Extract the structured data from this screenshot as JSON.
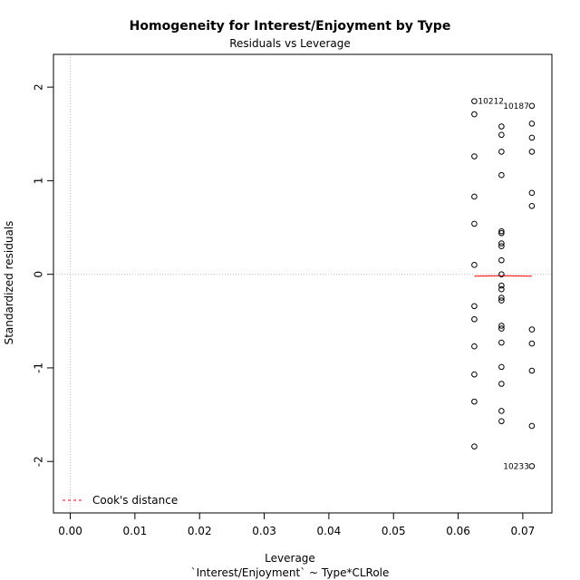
{
  "chart_data": {
    "type": "scatter",
    "title": "Homogeneity for Interest/Enjoyment by Type",
    "subtitle": "Residuals vs Leverage",
    "xlabel": "Leverage",
    "caption": "`Interest/Enjoyment` ~ Type*CLRole",
    "ylabel": "Standardized residuals",
    "xlim": [
      -0.0026,
      0.0745
    ],
    "ylim": [
      -2.55,
      2.35
    ],
    "x_ticks": [
      0.0,
      0.01,
      0.02,
      0.03,
      0.04,
      0.05,
      0.06,
      0.07
    ],
    "x_tick_labels": [
      "0.00",
      "0.01",
      "0.02",
      "0.03",
      "0.04",
      "0.05",
      "0.06",
      "0.07"
    ],
    "y_ticks": [
      -2,
      -1,
      0,
      1,
      2
    ],
    "y_tick_labels": [
      "-2",
      "-1",
      "0",
      "1",
      "2"
    ],
    "grid": false,
    "reference_lines": {
      "x": 0,
      "y": 0
    },
    "legend": {
      "position": "bottom-left",
      "entries": [
        "Cook's distance"
      ]
    },
    "colors": {
      "points": "#000000",
      "smooth": "#ff0000",
      "cooks": "#ff0000",
      "reference": "#bfbfbf"
    },
    "points": [
      {
        "x": 0.0625,
        "y": 1.85
      },
      {
        "x": 0.0625,
        "y": 1.71
      },
      {
        "x": 0.0625,
        "y": 1.26
      },
      {
        "x": 0.0625,
        "y": 0.83
      },
      {
        "x": 0.0625,
        "y": 0.54
      },
      {
        "x": 0.0625,
        "y": 0.1
      },
      {
        "x": 0.0625,
        "y": -0.34
      },
      {
        "x": 0.0625,
        "y": -0.48
      },
      {
        "x": 0.0625,
        "y": -0.77
      },
      {
        "x": 0.0625,
        "y": -1.07
      },
      {
        "x": 0.0625,
        "y": -1.36
      },
      {
        "x": 0.0625,
        "y": -1.84
      },
      {
        "x": 0.0667,
        "y": 1.58
      },
      {
        "x": 0.0667,
        "y": 1.49
      },
      {
        "x": 0.0667,
        "y": 1.31
      },
      {
        "x": 0.0667,
        "y": 1.06
      },
      {
        "x": 0.0667,
        "y": 0.46
      },
      {
        "x": 0.0667,
        "y": 0.44
      },
      {
        "x": 0.0667,
        "y": 0.33
      },
      {
        "x": 0.0667,
        "y": 0.3
      },
      {
        "x": 0.0667,
        "y": 0.15
      },
      {
        "x": 0.0667,
        "y": 0.0
      },
      {
        "x": 0.0667,
        "y": -0.12
      },
      {
        "x": 0.0667,
        "y": -0.16
      },
      {
        "x": 0.0667,
        "y": -0.25
      },
      {
        "x": 0.0667,
        "y": -0.28
      },
      {
        "x": 0.0667,
        "y": -0.55
      },
      {
        "x": 0.0667,
        "y": -0.58
      },
      {
        "x": 0.0667,
        "y": -0.73
      },
      {
        "x": 0.0667,
        "y": -0.99
      },
      {
        "x": 0.0667,
        "y": -1.17
      },
      {
        "x": 0.0667,
        "y": -1.46
      },
      {
        "x": 0.0667,
        "y": -1.57
      },
      {
        "x": 0.0714,
        "y": 1.8
      },
      {
        "x": 0.0714,
        "y": 1.61
      },
      {
        "x": 0.0714,
        "y": 1.46
      },
      {
        "x": 0.0714,
        "y": 1.31
      },
      {
        "x": 0.0714,
        "y": 0.87
      },
      {
        "x": 0.0714,
        "y": 0.73
      },
      {
        "x": 0.0714,
        "y": -0.59
      },
      {
        "x": 0.0714,
        "y": -0.74
      },
      {
        "x": 0.0714,
        "y": -1.03
      },
      {
        "x": 0.0714,
        "y": -1.62
      },
      {
        "x": 0.0714,
        "y": -2.05
      }
    ],
    "point_labels": [
      {
        "text": "10212",
        "x": 0.0625,
        "y": 1.85,
        "side": "right"
      },
      {
        "text": "10187",
        "x": 0.0714,
        "y": 1.8,
        "side": "left"
      },
      {
        "text": "10233",
        "x": 0.0714,
        "y": -2.05,
        "side": "left"
      }
    ],
    "smooth_line": [
      {
        "x": 0.0625,
        "y": -0.02
      },
      {
        "x": 0.0667,
        "y": -0.015
      },
      {
        "x": 0.0714,
        "y": -0.02
      }
    ]
  }
}
